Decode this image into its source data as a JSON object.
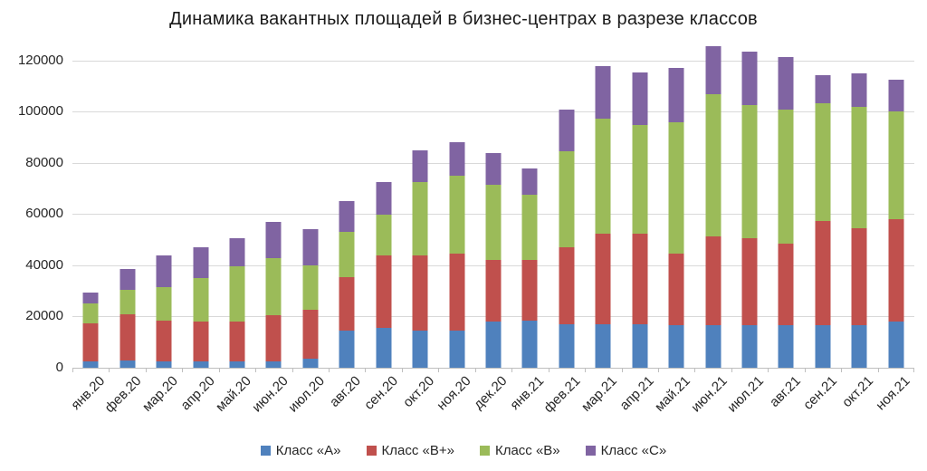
{
  "title": "Динамика вакантных площадей в бизнес-центрах в разрезе классов",
  "colors": {
    "background": "#FFFFFF",
    "gridline": "#D9D9D9",
    "axis": "#BFBFBF",
    "text": "#262626",
    "title_text": "#1A1A1A"
  },
  "chart_data": {
    "type": "bar",
    "stacked": true,
    "title": "Динамика вакантных площадей в бизнес-центрах в разрезе классов",
    "xlabel": "",
    "ylabel": "",
    "grid": "horizontal",
    "legend_position": "bottom",
    "ylim": [
      0,
      126700
    ],
    "yticks": [
      0,
      20000,
      40000,
      60000,
      80000,
      100000,
      120000
    ],
    "categories": [
      "янв.20",
      "фев.20",
      "мар.20",
      "апр.20",
      "май.20",
      "июн.20",
      "июл.20",
      "авг.20",
      "сен.20",
      "окт.20",
      "ноя.20",
      "дек.20",
      "янв.21",
      "фев.21",
      "мар.21",
      "апр.21",
      "май.21",
      "июн.21",
      "июл.21",
      "авг.21",
      "сен.21",
      "окт.21",
      "ноя.21"
    ],
    "series": [
      {
        "name": "Класс «А»",
        "color": "#4F81BD",
        "values": [
          2500,
          3000,
          2500,
          2500,
          2500,
          2500,
          3500,
          14500,
          15500,
          14500,
          14500,
          18000,
          18500,
          17000,
          17000,
          17000,
          16500,
          16500,
          16500,
          16500,
          16500,
          16500,
          18000
        ]
      },
      {
        "name": "Класс «В+»",
        "color": "#C0504D",
        "values": [
          15000,
          18000,
          16000,
          15500,
          15500,
          18000,
          19000,
          21000,
          28500,
          29500,
          30000,
          24000,
          23500,
          30000,
          35500,
          35500,
          28000,
          35000,
          34000,
          32000,
          41000,
          38000,
          40000
        ]
      },
      {
        "name": "Класс «В»",
        "color": "#9BBB59",
        "values": [
          7500,
          9500,
          13000,
          17000,
          21500,
          22500,
          17500,
          17500,
          16000,
          28500,
          30500,
          29500,
          25500,
          37500,
          45000,
          42500,
          51500,
          55500,
          52000,
          52500,
          46000,
          47500,
          42000
        ]
      },
      {
        "name": "Класс «С»",
        "color": "#8064A2",
        "values": [
          4500,
          8000,
          12500,
          12000,
          11000,
          14000,
          14000,
          12000,
          12500,
          12500,
          13000,
          12500,
          10500,
          16500,
          20500,
          20500,
          21000,
          18500,
          21000,
          20500,
          11000,
          13000,
          12500
        ]
      }
    ],
    "totals": [
      29500,
      38500,
      44000,
      47000,
      50500,
      57000,
      54000,
      65000,
      72500,
      85000,
      88000,
      84000,
      78000,
      101000,
      118000,
      115500,
      117000,
      125500,
      123500,
      121500,
      114500,
      115000,
      112500
    ]
  }
}
